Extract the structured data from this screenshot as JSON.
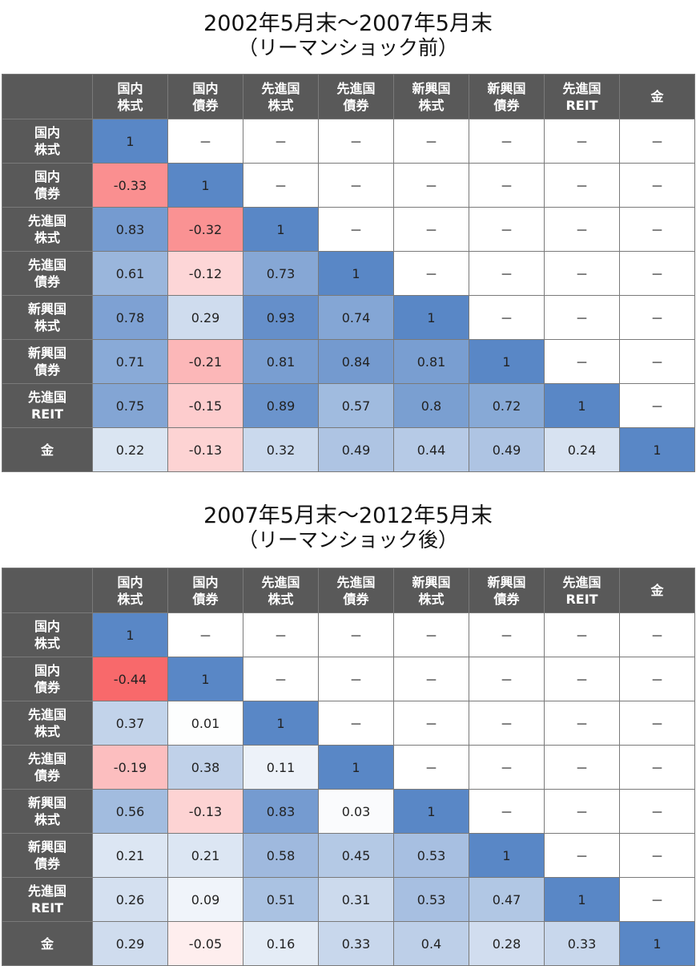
{
  "chart_data": [
    {
      "type": "heatmap",
      "title": "2002年5月末～2007年5月末",
      "subtitle": "（リーマンショック前）",
      "row_labels": [
        [
          "国内",
          "株式"
        ],
        [
          "国内",
          "債券"
        ],
        [
          "先進国",
          "株式"
        ],
        [
          "先進国",
          "債券"
        ],
        [
          "新興国",
          "株式"
        ],
        [
          "新興国",
          "債券"
        ],
        [
          "先進国",
          "REIT"
        ],
        [
          "金"
        ]
      ],
      "col_labels": [
        [
          "国内",
          "株式"
        ],
        [
          "国内",
          "債券"
        ],
        [
          "先進国",
          "株式"
        ],
        [
          "先進国",
          "債券"
        ],
        [
          "新興国",
          "株式"
        ],
        [
          "新興国",
          "債券"
        ],
        [
          "先進国",
          "REIT"
        ],
        [
          "金"
        ]
      ],
      "values": [
        [
          "1",
          "－",
          "－",
          "－",
          "－",
          "－",
          "－",
          "－"
        ],
        [
          "-0.33",
          "1",
          "－",
          "－",
          "－",
          "－",
          "－",
          "－"
        ],
        [
          "0.83",
          "-0.32",
          "1",
          "－",
          "－",
          "－",
          "－",
          "－"
        ],
        [
          "0.61",
          "-0.12",
          "0.73",
          "1",
          "－",
          "－",
          "－",
          "－"
        ],
        [
          "0.78",
          "0.29",
          "0.93",
          "0.74",
          "1",
          "－",
          "－",
          "－"
        ],
        [
          "0.71",
          "-0.21",
          "0.81",
          "0.84",
          "0.81",
          "1",
          "－",
          "－"
        ],
        [
          "0.75",
          "-0.15",
          "0.89",
          "0.57",
          "0.8",
          "0.72",
          "1",
          "－"
        ],
        [
          "0.22",
          "-0.13",
          "0.32",
          "0.49",
          "0.44",
          "0.49",
          "0.24",
          "1"
        ]
      ]
    },
    {
      "type": "heatmap",
      "title": "2007年5月末～2012年5月末",
      "subtitle": "（リーマンショック後）",
      "row_labels": [
        [
          "国内",
          "株式"
        ],
        [
          "国内",
          "債券"
        ],
        [
          "先進国",
          "株式"
        ],
        [
          "先進国",
          "債券"
        ],
        [
          "新興国",
          "株式"
        ],
        [
          "新興国",
          "債券"
        ],
        [
          "先進国",
          "REIT"
        ],
        [
          "金"
        ]
      ],
      "col_labels": [
        [
          "国内",
          "株式"
        ],
        [
          "国内",
          "債券"
        ],
        [
          "先進国",
          "株式"
        ],
        [
          "先進国",
          "債券"
        ],
        [
          "新興国",
          "株式"
        ],
        [
          "新興国",
          "債券"
        ],
        [
          "先進国",
          "REIT"
        ],
        [
          "金"
        ]
      ],
      "values": [
        [
          "1",
          "－",
          "－",
          "－",
          "－",
          "－",
          "－",
          "－"
        ],
        [
          "-0.44",
          "1",
          "－",
          "－",
          "－",
          "－",
          "－",
          "－"
        ],
        [
          "0.37",
          "0.01",
          "1",
          "－",
          "－",
          "－",
          "－",
          "－"
        ],
        [
          "-0.19",
          "0.38",
          "0.11",
          "1",
          "－",
          "－",
          "－",
          "－"
        ],
        [
          "0.56",
          "-0.13",
          "0.83",
          "0.03",
          "1",
          "－",
          "－",
          "－"
        ],
        [
          "0.21",
          "0.21",
          "0.58",
          "0.45",
          "0.53",
          "1",
          "－",
          "－"
        ],
        [
          "0.26",
          "0.09",
          "0.51",
          "0.31",
          "0.53",
          "0.47",
          "1",
          "－"
        ],
        [
          "0.29",
          "-0.05",
          "0.16",
          "0.33",
          "0.4",
          "0.28",
          "0.33",
          "1"
        ]
      ]
    }
  ],
  "colors": {
    "header_bg": "#595959",
    "positive": "#5987c6",
    "negative": "#f8696b",
    "neutral": "#ffffff"
  }
}
